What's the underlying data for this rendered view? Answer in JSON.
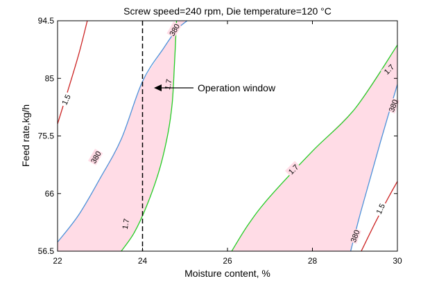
{
  "chart_data": {
    "type": "contour",
    "title": "Screw speed=240 rpm, Die temperature=120 °C",
    "xlabel": "Moisture content, %",
    "ylabel": "Feed rate,kg/h",
    "xlim": [
      22,
      30
    ],
    "ylim": [
      56.5,
      94.5
    ],
    "xticks": [
      "22",
      "24",
      "26",
      "28",
      "30"
    ],
    "yticks": [
      "56.5",
      "66",
      "75.5",
      "85",
      "94.5"
    ],
    "grid": false,
    "colors": {
      "window_fill": "#ffdce6",
      "contour_380": "#4a90d9",
      "contour_1_7": "#22cc22",
      "contour_1_5": "#cc2222",
      "vline": "#000000"
    },
    "operation_window": {
      "label": "Operation window",
      "vline_x": 24,
      "arrow_tip": [
        24.3,
        83.8
      ]
    },
    "contours": [
      {
        "label": "380",
        "color": "#4a90d9",
        "labels": [
          {
            "x": 24.75,
            "y": 93.0
          },
          {
            "x": 22.9,
            "y": 72.0
          }
        ],
        "points": [
          [
            22.0,
            58.0
          ],
          [
            22.5,
            62.5
          ],
          [
            23.0,
            68.5
          ],
          [
            23.5,
            75.0
          ],
          [
            24.0,
            84.5
          ],
          [
            24.5,
            90.0
          ],
          [
            24.8,
            93.0
          ],
          [
            25.05,
            94.5
          ]
        ]
      },
      {
        "label": "1.7",
        "color": "#22cc22",
        "labels": [
          {
            "x": 24.6,
            "y": 84.0
          },
          {
            "x": 23.6,
            "y": 61.0
          }
        ],
        "points": [
          [
            23.5,
            56.5
          ],
          [
            23.8,
            59.5
          ],
          [
            24.1,
            64.0
          ],
          [
            24.4,
            70.0
          ],
          [
            24.6,
            76.0
          ],
          [
            24.7,
            81.0
          ],
          [
            24.75,
            87.0
          ],
          [
            24.8,
            94.5
          ]
        ]
      },
      {
        "label": "1.7",
        "color": "#22cc22",
        "labels": [
          {
            "x": 27.55,
            "y": 70.0
          },
          {
            "x": 29.8,
            "y": 86.5
          }
        ],
        "points": [
          [
            26.1,
            56.5
          ],
          [
            26.5,
            61.0
          ],
          [
            27.0,
            65.5
          ],
          [
            28.0,
            73.0
          ],
          [
            29.0,
            80.0
          ],
          [
            30.0,
            90.5
          ]
        ]
      },
      {
        "label": "380",
        "color": "#4a90d9",
        "labels": [
          {
            "x": 29.9,
            "y": 80.5
          },
          {
            "x": 29.0,
            "y": 59.0
          }
        ],
        "points": [
          [
            28.9,
            56.5
          ],
          [
            29.1,
            62.0
          ],
          [
            29.3,
            67.0
          ],
          [
            29.6,
            74.5
          ],
          [
            30.0,
            84.0
          ]
        ]
      },
      {
        "label": "1.5",
        "color": "#cc2222",
        "labels": [
          {
            "x": 22.2,
            "y": 81.5
          },
          {
            "x": 29.6,
            "y": 63.5
          }
        ],
        "points": [
          [
            22.0,
            77.5
          ],
          [
            22.2,
            82.0
          ],
          [
            22.5,
            89.0
          ],
          [
            22.7,
            94.5
          ]
        ]
      },
      {
        "label": "1.5",
        "color": "#cc2222",
        "labels": [],
        "points": [
          [
            29.15,
            56.5
          ],
          [
            29.5,
            61.5
          ],
          [
            29.8,
            65.5
          ],
          [
            30.0,
            68.0
          ]
        ]
      }
    ]
  }
}
